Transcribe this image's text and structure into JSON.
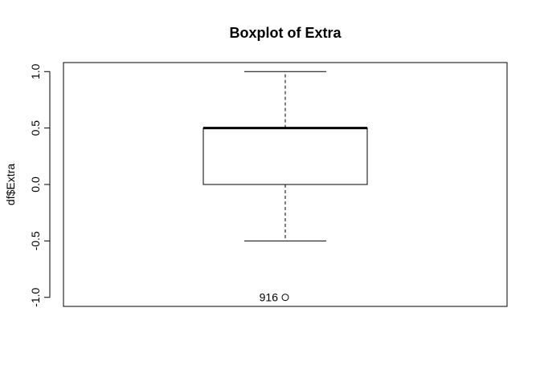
{
  "chart_data": {
    "type": "boxplot",
    "title": "Boxplot of Extra",
    "xlabel": "",
    "ylabel": "df$Extra",
    "ylim": [
      -1.08,
      1.08
    ],
    "yticks": [
      -1.0,
      -0.5,
      0.0,
      0.5,
      1.0
    ],
    "ytick_labels": [
      "-1.0",
      "-0.5",
      "0.0",
      "0.5",
      "1.0"
    ],
    "boxes": [
      {
        "whisker_low": -0.5,
        "q1": 0.0,
        "median": 0.5,
        "q3": 0.5,
        "whisker_high": 1.0,
        "outliers": [
          {
            "value": -1.0,
            "label": "916"
          }
        ]
      }
    ],
    "grid": false,
    "legend": "none"
  }
}
